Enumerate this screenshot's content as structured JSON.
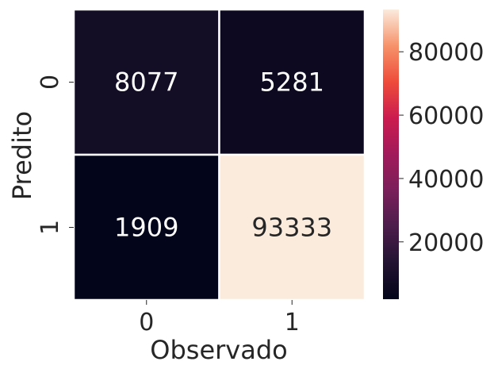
{
  "chart_data": {
    "type": "heatmap",
    "title": "",
    "xlabel": "Observado",
    "ylabel": "Predito",
    "x_categories": [
      "0",
      "1"
    ],
    "y_categories": [
      "0",
      "1"
    ],
    "values": [
      [
        8077,
        5281
      ],
      [
        1909,
        93333
      ]
    ],
    "cell_labels": [
      [
        "8077",
        "5281"
      ],
      [
        "1909",
        "93333"
      ]
    ],
    "colormap": "rocket",
    "colorbar": {
      "range": [
        1909,
        93333
      ],
      "ticks": [
        20000,
        40000,
        60000,
        80000
      ],
      "tick_labels": [
        "20000",
        "40000",
        "60000",
        "80000"
      ]
    },
    "grid": false,
    "legend": "colorbar-right"
  }
}
